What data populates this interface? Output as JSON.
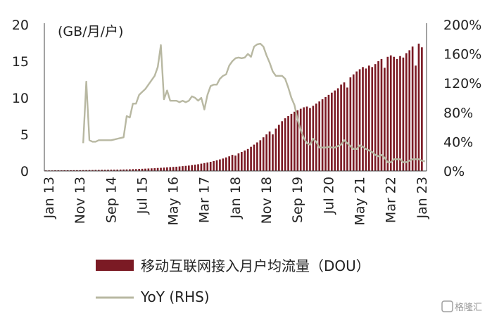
{
  "chart_data": {
    "type": "bar",
    "unit_label": "(GB/月/户)",
    "left_axis": {
      "range": [
        0,
        20
      ],
      "ticks": [
        "0",
        "5",
        "10",
        "15",
        "20"
      ]
    },
    "right_axis": {
      "range": [
        0,
        200
      ],
      "ticks": [
        "0%",
        "40%",
        "80%",
        "120%",
        "160%",
        "200%"
      ]
    },
    "x_tick_labels": [
      "Jan 13",
      "Nov 13",
      "Sep 14",
      "Jul 15",
      "May 16",
      "Mar 17",
      "Jan 18",
      "Nov 18",
      "Sep 19",
      "Jul 20",
      "May 21",
      "Mar 22",
      "Jan 23"
    ],
    "months": [
      "2013-01",
      "2013-02",
      "2013-03",
      "2013-04",
      "2013-05",
      "2013-06",
      "2013-07",
      "2013-08",
      "2013-09",
      "2013-10",
      "2013-11",
      "2013-12",
      "2014-01",
      "2014-02",
      "2014-03",
      "2014-04",
      "2014-05",
      "2014-06",
      "2014-07",
      "2014-08",
      "2014-09",
      "2014-10",
      "2014-11",
      "2014-12",
      "2015-01",
      "2015-02",
      "2015-03",
      "2015-04",
      "2015-05",
      "2015-06",
      "2015-07",
      "2015-08",
      "2015-09",
      "2015-10",
      "2015-11",
      "2015-12",
      "2016-01",
      "2016-02",
      "2016-03",
      "2016-04",
      "2016-05",
      "2016-06",
      "2016-07",
      "2016-08",
      "2016-09",
      "2016-10",
      "2016-11",
      "2016-12",
      "2017-01",
      "2017-02",
      "2017-03",
      "2017-04",
      "2017-05",
      "2017-06",
      "2017-07",
      "2017-08",
      "2017-09",
      "2017-10",
      "2017-11",
      "2017-12",
      "2018-01",
      "2018-02",
      "2018-03",
      "2018-04",
      "2018-05",
      "2018-06",
      "2018-07",
      "2018-08",
      "2018-09",
      "2018-10",
      "2018-11",
      "2018-12",
      "2019-01",
      "2019-02",
      "2019-03",
      "2019-04",
      "2019-05",
      "2019-06",
      "2019-07",
      "2019-08",
      "2019-09",
      "2019-10",
      "2019-11",
      "2019-12",
      "2020-01",
      "2020-02",
      "2020-03",
      "2020-04",
      "2020-05",
      "2020-06",
      "2020-07",
      "2020-08",
      "2020-09",
      "2020-10",
      "2020-11",
      "2020-12",
      "2021-01",
      "2021-02",
      "2021-03",
      "2021-04",
      "2021-05",
      "2021-06",
      "2021-07",
      "2021-08",
      "2021-09",
      "2021-10",
      "2021-11",
      "2021-12",
      "2022-01",
      "2022-02",
      "2022-03",
      "2022-04",
      "2022-05",
      "2022-06",
      "2022-07",
      "2022-08",
      "2022-09",
      "2022-10",
      "2022-11",
      "2022-12",
      "2023-01",
      "2023-02",
      "2023-03"
    ],
    "series": [
      {
        "name": "移动互联网接入月户均流量（DOU）",
        "kind": "bar",
        "axis": "left",
        "color": "#7b1a24",
        "values": [
          0.08,
          0.08,
          0.08,
          0.09,
          0.09,
          0.09,
          0.1,
          0.1,
          0.1,
          0.11,
          0.11,
          0.11,
          0.12,
          0.12,
          0.13,
          0.13,
          0.14,
          0.14,
          0.15,
          0.15,
          0.16,
          0.17,
          0.17,
          0.18,
          0.19,
          0.2,
          0.21,
          0.23,
          0.25,
          0.26,
          0.28,
          0.3,
          0.32,
          0.34,
          0.36,
          0.38,
          0.41,
          0.43,
          0.46,
          0.49,
          0.52,
          0.55,
          0.58,
          0.62,
          0.66,
          0.7,
          0.74,
          0.8,
          0.86,
          0.92,
          1.0,
          1.08,
          1.16,
          1.25,
          1.35,
          1.46,
          1.58,
          1.7,
          1.85,
          2.0,
          2.2,
          2.1,
          2.4,
          2.6,
          2.8,
          3.0,
          3.3,
          3.6,
          3.9,
          4.2,
          4.6,
          5.0,
          5.4,
          5.0,
          5.8,
          6.3,
          6.8,
          7.2,
          7.5,
          7.8,
          8.1,
          8.3,
          8.5,
          8.7,
          8.8,
          8.6,
          8.9,
          9.2,
          9.5,
          9.8,
          10.1,
          10.4,
          10.7,
          11.0,
          11.3,
          11.8,
          12.1,
          11.4,
          12.8,
          13.2,
          13.6,
          13.9,
          14.2,
          14.0,
          14.4,
          14.2,
          14.6,
          15.0,
          15.3,
          14.1,
          15.6,
          15.8,
          15.6,
          15.3,
          15.7,
          15.5,
          16.1,
          16.5,
          17.0,
          14.4,
          17.4,
          16.9
        ]
      },
      {
        "name": "YoY (RHS)",
        "kind": "line",
        "axis": "right",
        "color": "#b8b8a2",
        "values": [
          null,
          null,
          null,
          null,
          null,
          null,
          null,
          null,
          null,
          null,
          null,
          null,
          38,
          122,
          42,
          40,
          40,
          42,
          42,
          42,
          42,
          42,
          43,
          44,
          45,
          46,
          75,
          73,
          92,
          92,
          104,
          108,
          112,
          118,
          124,
          130,
          142,
          172,
          98,
          110,
          96,
          96,
          96,
          94,
          96,
          94,
          96,
          102,
          100,
          96,
          100,
          84,
          104,
          116,
          118,
          118,
          126,
          130,
          132,
          144,
          150,
          154,
          155,
          154,
          155,
          160,
          156,
          170,
          173,
          174,
          170,
          158,
          148,
          136,
          130,
          130,
          130,
          126,
          114,
          100,
          90,
          70,
          56,
          45,
          38,
          36,
          44,
          40,
          32,
          32,
          32,
          33,
          32,
          32,
          34,
          36,
          42,
          38,
          34,
          30,
          30,
          35,
          33,
          30,
          28,
          26,
          22,
          20,
          22,
          18,
          12,
          12,
          16,
          16,
          16,
          12,
          12,
          14,
          16,
          16,
          16,
          14,
          13
        ]
      }
    ],
    "legend_placement": "bottom",
    "grid": false
  },
  "watermark": {
    "text": "格隆汇"
  }
}
